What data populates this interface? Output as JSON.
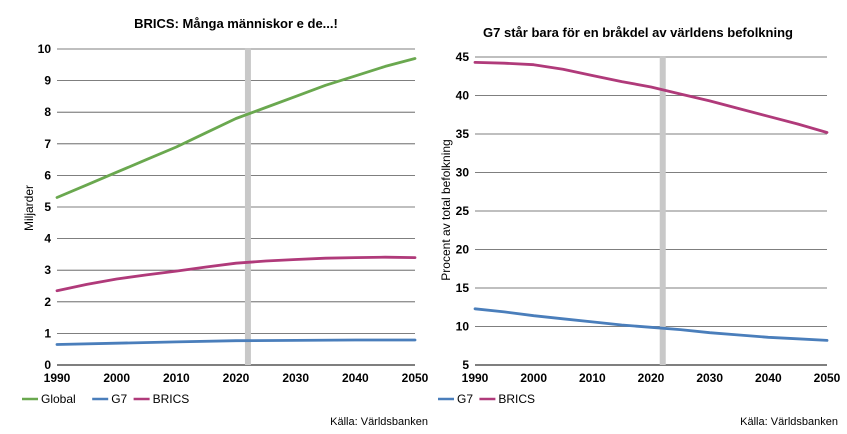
{
  "source_left": "Källa: Världsbanken",
  "source_right": "Källa: Världsbanken",
  "chart_data": [
    {
      "type": "line",
      "title": "BRICS: Många människor e de...!",
      "xlabel": "",
      "ylabel": "Miljarder",
      "xlim": [
        1990,
        2050
      ],
      "ylim": [
        0,
        10
      ],
      "xticks": [
        1990,
        2000,
        2010,
        2020,
        2030,
        2040,
        2050
      ],
      "yticks": [
        0,
        1,
        2,
        3,
        4,
        5,
        6,
        7,
        8,
        9,
        10
      ],
      "highlight_year": 2022,
      "grid": "horizontal",
      "legend_position": "bottom",
      "series": [
        {
          "name": "Global",
          "color": "#6aa84f",
          "x": [
            1990,
            1995,
            2000,
            2005,
            2010,
            2015,
            2020,
            2025,
            2030,
            2035,
            2040,
            2045,
            2050
          ],
          "y": [
            5.3,
            5.7,
            6.1,
            6.5,
            6.9,
            7.35,
            7.8,
            8.15,
            8.5,
            8.85,
            9.15,
            9.45,
            9.7
          ]
        },
        {
          "name": "G7",
          "color": "#4a7ebb",
          "x": [
            1990,
            2000,
            2010,
            2020,
            2030,
            2040,
            2050
          ],
          "y": [
            0.65,
            0.69,
            0.73,
            0.77,
            0.78,
            0.79,
            0.79
          ]
        },
        {
          "name": "BRICS",
          "color": "#b03a7a",
          "x": [
            1990,
            1995,
            2000,
            2005,
            2010,
            2015,
            2020,
            2025,
            2030,
            2035,
            2040,
            2045,
            2050
          ],
          "y": [
            2.35,
            2.55,
            2.72,
            2.85,
            2.97,
            3.1,
            3.22,
            3.29,
            3.34,
            3.38,
            3.4,
            3.41,
            3.4
          ]
        }
      ]
    },
    {
      "type": "line",
      "title": "G7 står bara för en bråkdel av världens befolkning",
      "xlabel": "",
      "ylabel": "Procent av total befolkning",
      "xlim": [
        1990,
        2050
      ],
      "ylim": [
        5,
        45
      ],
      "xticks": [
        1990,
        2000,
        2010,
        2020,
        2030,
        2040,
        2050
      ],
      "yticks": [
        5,
        10,
        15,
        20,
        25,
        30,
        35,
        40,
        45
      ],
      "highlight_year": 2022,
      "grid": "horizontal",
      "legend_position": "bottom",
      "series": [
        {
          "name": "G7",
          "color": "#4a7ebb",
          "x": [
            1990,
            1995,
            2000,
            2005,
            2010,
            2015,
            2020,
            2025,
            2030,
            2035,
            2040,
            2045,
            2050
          ],
          "y": [
            12.3,
            11.9,
            11.4,
            11.0,
            10.6,
            10.2,
            9.9,
            9.6,
            9.2,
            8.9,
            8.6,
            8.4,
            8.2
          ]
        },
        {
          "name": "BRICS",
          "color": "#b03a7a",
          "x": [
            1990,
            1995,
            2000,
            2005,
            2010,
            2015,
            2020,
            2025,
            2030,
            2035,
            2040,
            2045,
            2050
          ],
          "y": [
            44.3,
            44.2,
            44.0,
            43.4,
            42.6,
            41.8,
            41.1,
            40.2,
            39.3,
            38.3,
            37.3,
            36.3,
            35.2
          ]
        }
      ]
    }
  ]
}
